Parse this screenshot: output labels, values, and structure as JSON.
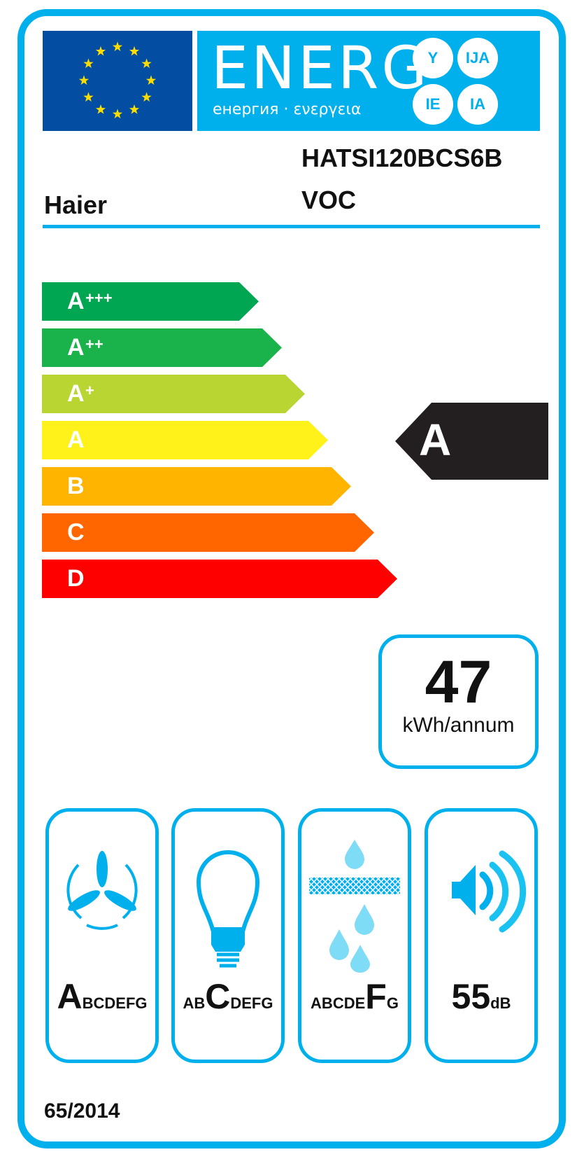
{
  "header": {
    "energy_word": "ENERG",
    "energy_subtitle": "енергия · ενεργεια",
    "suffixes": [
      "Y",
      "IJA",
      "IE",
      "IA"
    ],
    "flag": "eu-flag"
  },
  "supplier": "Haier",
  "model": [
    "HATSI120BCS6B",
    "VOC"
  ],
  "scale": {
    "classes": [
      {
        "label": "A",
        "sup": "+++",
        "color": "#00a651"
      },
      {
        "label": "A",
        "sup": "++",
        "color": "#19b24b"
      },
      {
        "label": "A",
        "sup": "+",
        "color": "#b9d531"
      },
      {
        "label": "A",
        "sup": "",
        "color": "#fff21a"
      },
      {
        "label": "B",
        "sup": "",
        "color": "#ffb400"
      },
      {
        "label": "C",
        "sup": "",
        "color": "#ff6600"
      },
      {
        "label": "D",
        "sup": "",
        "color": "#ff0000"
      }
    ],
    "rating": "A",
    "rating_index": 3
  },
  "consumption": {
    "value": "47",
    "unit": "kWh/annum"
  },
  "cards": [
    {
      "icon": "fan-icon",
      "pre": "",
      "big": "A",
      "post": "BCDEFG"
    },
    {
      "icon": "light-bulb-icon",
      "pre": "AB",
      "big": "C",
      "post": "DEFG"
    },
    {
      "icon": "grease-filter-icon",
      "pre": "ABCDE",
      "big": "F",
      "post": "G"
    },
    {
      "icon": "speaker-icon",
      "value": "55",
      "unit": "dB"
    }
  ],
  "regulation": "65/2014",
  "colors": {
    "frame": "#00b0ec",
    "flag": "#034ea2",
    "rating_arrow": "#231f20"
  }
}
